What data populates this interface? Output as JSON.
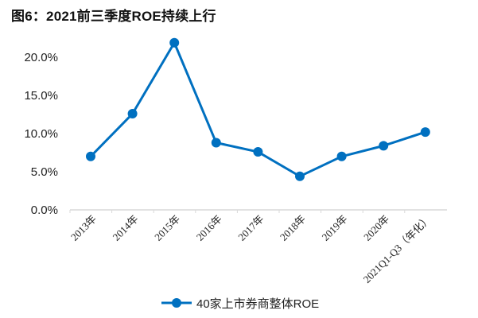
{
  "header": {
    "title": "图6：2021前三季度ROE持续上行"
  },
  "colors": {
    "series": "#0070C0",
    "axis": "#D9D9D9",
    "text": "#222222"
  },
  "legend": {
    "label": "40家上市券商整体ROE"
  },
  "chart_data": {
    "type": "line",
    "title": "图6：2021前三季度ROE持续上行",
    "xlabel": "",
    "ylabel": "",
    "categories": [
      "2013年",
      "2014年",
      "2015年",
      "2016年",
      "2017年",
      "2018年",
      "2019年",
      "2020年",
      "2021Q1-Q3（年化）"
    ],
    "series": [
      {
        "name": "40家上市券商整体ROE",
        "values": [
          7.0,
          12.6,
          21.9,
          8.8,
          7.6,
          4.4,
          7.0,
          8.4,
          10.2
        ]
      }
    ],
    "ylim": [
      0,
      20
    ],
    "yticks": [
      "0.0%",
      "5.0%",
      "10.0%",
      "15.0%",
      "20.0%"
    ],
    "ytick_values": [
      0,
      5,
      10,
      15,
      20
    ],
    "grid": false,
    "legend_position": "bottom"
  }
}
